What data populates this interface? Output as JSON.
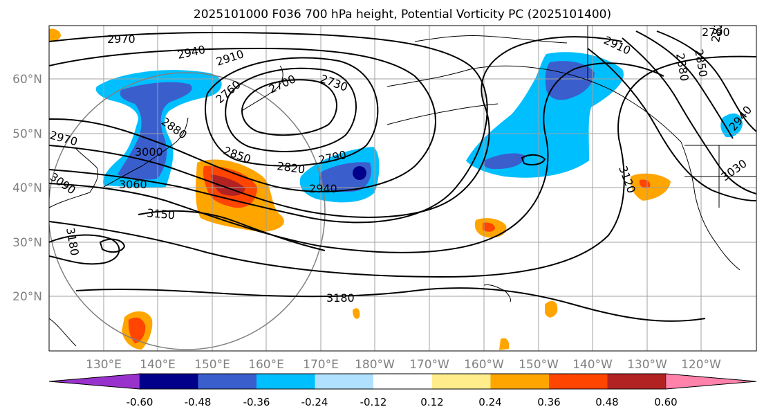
{
  "title": "2025101000 F036 700 hPa height, Potential Vorticity PC (2025101400)",
  "map": {
    "lat_labels": [
      "60°N",
      "50°N",
      "40°N",
      "30°N",
      "20°N"
    ],
    "lon_labels": [
      "130°E",
      "140°E",
      "150°E",
      "160°E",
      "170°E",
      "180°W",
      "170°W",
      "160°W",
      "150°W",
      "140°W",
      "130°W",
      "120°W"
    ],
    "contour_labels": [
      "2970",
      "2940",
      "2910",
      "2760",
      "2700",
      "2730",
      "2880",
      "3000",
      "3060",
      "2850",
      "2820",
      "2790",
      "2940",
      "3150",
      "3180",
      "3180",
      "2910",
      "2790",
      "2880",
      "2850",
      "2820",
      "3120",
      "3030",
      "2940",
      "2970",
      "3090"
    ]
  },
  "colorbar": {
    "colors": [
      "#9932cc",
      "#00008b",
      "#3a5fcd",
      "#00bfff",
      "#b0e2ff",
      "#ffffff",
      "#ffec8b",
      "#ffa500",
      "#ff4500",
      "#b22222",
      "#ff82ab"
    ],
    "tick_labels": [
      "-0.60",
      "-0.48",
      "-0.36",
      "-0.24",
      "-0.12",
      "0.12",
      "0.24",
      "0.36",
      "0.48",
      "0.60"
    ]
  }
}
